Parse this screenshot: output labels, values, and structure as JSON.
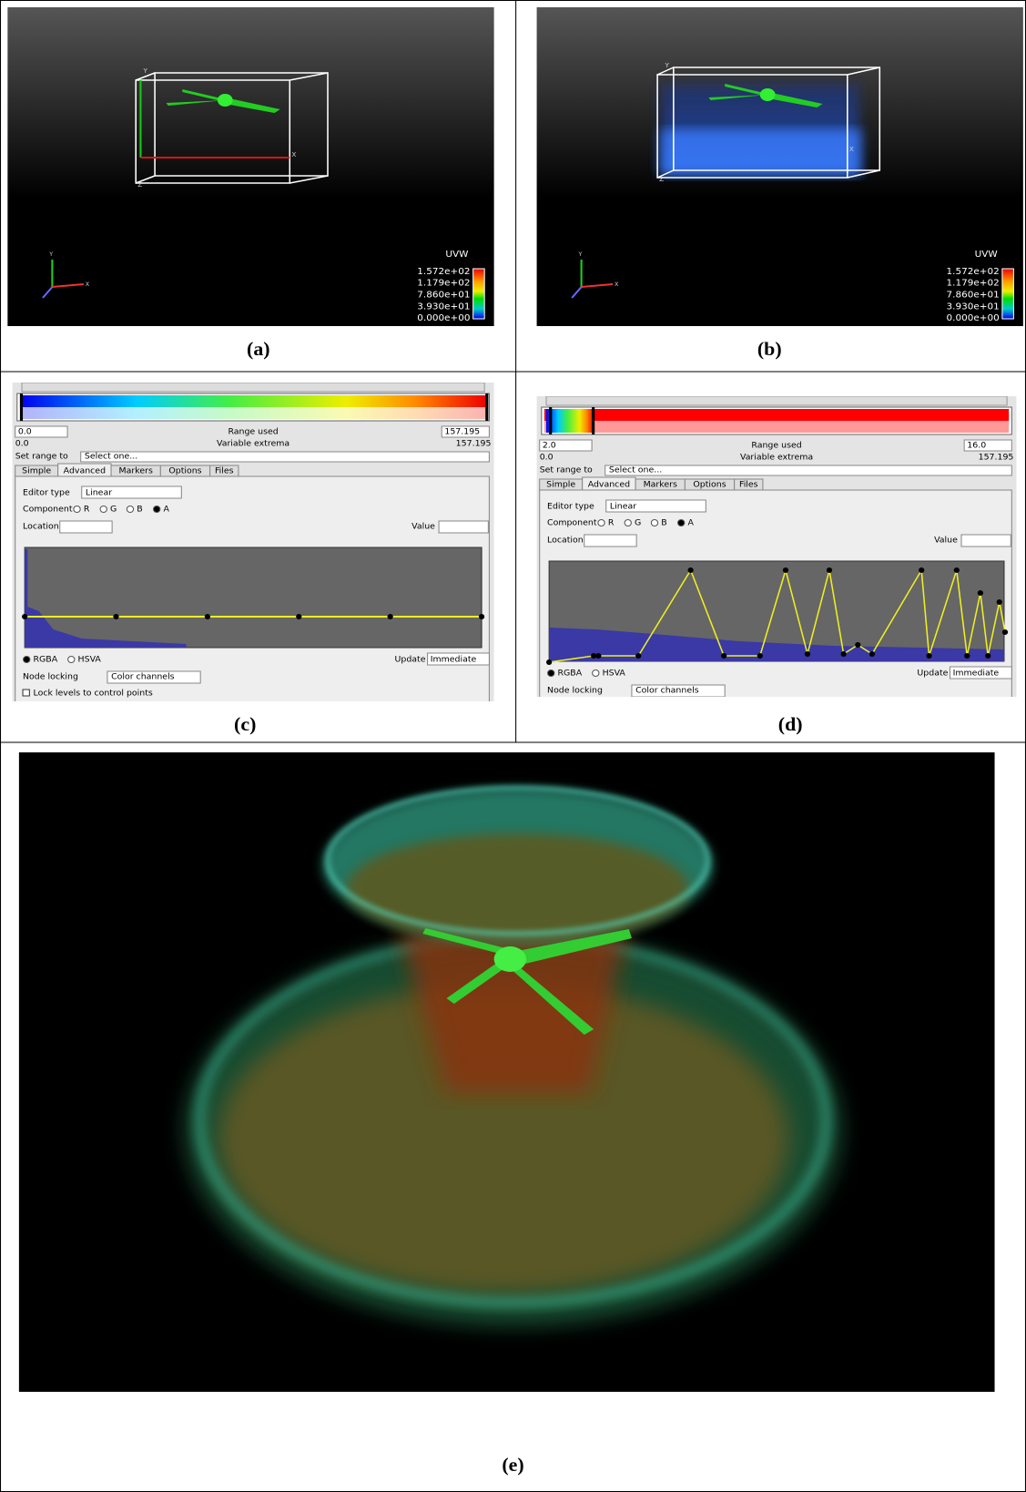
{
  "panels": [
    {
      "label": "(a)",
      "box_axes": [
        "Y",
        "X",
        "Z"
      ],
      "triad": [
        "Y",
        "X"
      ],
      "legend": {
        "title": "UVW",
        "labels": [
          "1.572e+02",
          "1.179e+02",
          "7.860e+01",
          "3.930e+01",
          "0.000e+00"
        ]
      }
    },
    {
      "label": "(b)",
      "box_axes": [
        "Y",
        "X",
        "Z"
      ],
      "triad": [
        "Y",
        "X"
      ],
      "legend": {
        "title": "UVW",
        "labels": [
          "1.572e+02",
          "1.179e+02",
          "7.860e+01",
          "3.930e+01",
          "0.000e+00"
        ]
      }
    },
    {
      "label": "(c)",
      "editor": {
        "range_min": "0.0",
        "range_label": "Range used",
        "range_max": "157.195",
        "extrema_min": "0.0",
        "extrema_label": "Variable extrema",
        "extrema_max": "157.195",
        "set_range_label": "Set range to",
        "set_range_value": "Select one...",
        "tabs": [
          "Simple",
          "Advanced",
          "Markers",
          "Options",
          "Files"
        ],
        "editor_type_label": "Editor type",
        "editor_type_value": "Linear",
        "component_label": "Component",
        "components": [
          "R",
          "G",
          "B",
          "A"
        ],
        "location_label": "Location",
        "value_label": "Value",
        "modes": [
          "RGBA",
          "HSVA"
        ],
        "update_label": "Update",
        "update_value": "Immediate",
        "node_locking_label": "Node locking",
        "node_locking_value": "Color channels",
        "lock_levels": "Lock levels to control points"
      }
    },
    {
      "label": "(d)",
      "editor": {
        "range_min": "2.0",
        "range_label": "Range used",
        "range_max": "16.0",
        "extrema_min": "0.0",
        "extrema_label": "Variable extrema",
        "extrema_max": "157.195",
        "set_range_label": "Set range to",
        "set_range_value": "Select one...",
        "tabs": [
          "Simple",
          "Advanced",
          "Markers",
          "Options",
          "Files"
        ],
        "editor_type_label": "Editor type",
        "editor_type_value": "Linear",
        "component_label": "Component",
        "components": [
          "R",
          "G",
          "B",
          "A"
        ],
        "location_label": "Location",
        "value_label": "Value",
        "modes": [
          "RGBA",
          "HSVA"
        ],
        "update_label": "Update",
        "update_value": "Immediate",
        "node_locking_label": "Node locking",
        "node_locking_value": "Color channels"
      }
    },
    {
      "label": "(e)"
    }
  ]
}
